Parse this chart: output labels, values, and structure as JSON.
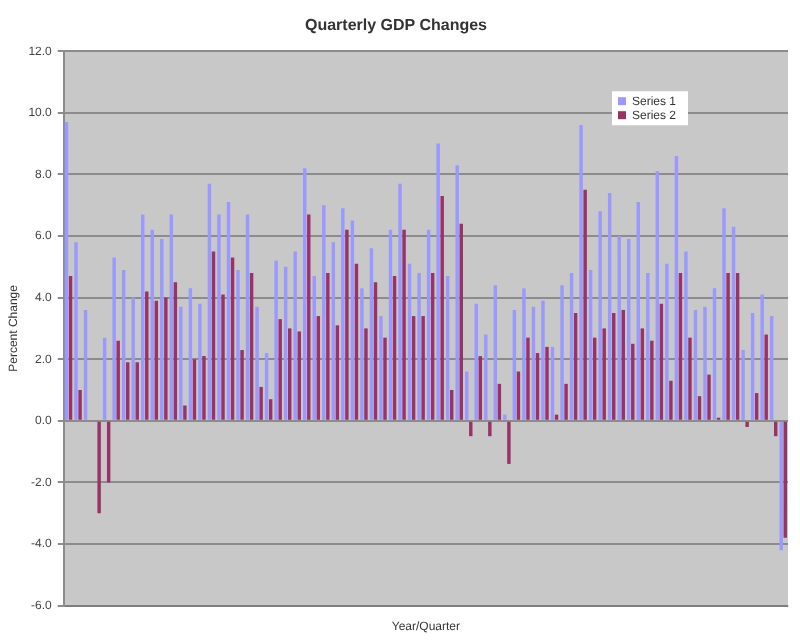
{
  "chart_data": {
    "type": "bar",
    "title": "Quarterly GDP Changes",
    "xlabel": "Year/Quarter",
    "ylabel": "Percent Change",
    "categories": [
      null,
      null,
      null,
      null,
      null,
      null,
      null,
      null,
      null,
      null,
      null,
      null,
      null,
      null,
      null,
      null,
      null,
      null,
      null,
      null,
      null,
      null,
      null,
      null,
      null,
      null,
      null,
      null,
      null,
      null,
      null,
      null,
      null,
      null,
      null,
      null,
      null,
      null,
      null,
      null,
      null,
      null,
      null,
      null,
      null,
      null,
      null,
      null,
      null,
      null,
      null,
      null,
      null,
      null,
      null,
      null,
      null,
      null,
      null,
      null,
      null,
      null,
      null,
      null,
      null,
      null,
      null,
      null,
      null,
      null,
      null,
      null,
      null,
      null,
      null,
      null
    ],
    "series": [
      {
        "name": "Series 1",
        "color": "#9999ff",
        "values": [
          9.7,
          5.8,
          3.6,
          0,
          2.7,
          5.3,
          4.9,
          4.0,
          6.7,
          6.2,
          5.9,
          6.7,
          3.7,
          4.3,
          3.8,
          7.7,
          6.7,
          7.1,
          4.9,
          6.7,
          3.7,
          2.2,
          5.2,
          5.0,
          5.5,
          8.2,
          4.7,
          7.0,
          5.8,
          6.9,
          6.5,
          4.3,
          5.6,
          3.4,
          6.2,
          7.7,
          5.1,
          4.8,
          6.2,
          9.0,
          4.7,
          8.3,
          1.6,
          3.8,
          2.8,
          4.4,
          0.2,
          3.6,
          4.3,
          3.7,
          3.9,
          2.4,
          4.4,
          4.8,
          9.6,
          4.9,
          6.8,
          7.4,
          6.0,
          5.9,
          7.1,
          4.8,
          8.1,
          5.1,
          8.6,
          5.5,
          3.6,
          3.7,
          4.3,
          6.9,
          6.3,
          2.3,
          3.5,
          4.1,
          3.4,
          -4.2
        ]
      },
      {
        "name": "Series 2",
        "color": "#993366",
        "values": [
          4.7,
          1.0,
          0,
          -3.0,
          -2.0,
          2.6,
          1.9,
          1.9,
          4.2,
          3.9,
          4.0,
          4.5,
          0.5,
          2.0,
          2.1,
          5.5,
          4.1,
          5.3,
          2.3,
          4.8,
          1.1,
          0.7,
          3.3,
          3.0,
          2.9,
          6.7,
          3.4,
          4.8,
          3.1,
          6.2,
          5.1,
          3.0,
          4.5,
          2.7,
          4.7,
          6.2,
          3.4,
          3.4,
          4.8,
          7.3,
          1.0,
          6.4,
          -0.5,
          2.1,
          -0.5,
          1.2,
          -1.4,
          1.6,
          2.7,
          2.2,
          2.4,
          0.2,
          1.2,
          3.5,
          7.5,
          2.7,
          3.0,
          3.5,
          3.6,
          2.5,
          3.0,
          2.6,
          3.8,
          1.3,
          4.8,
          2.7,
          0.8,
          1.5,
          0.1,
          4.8,
          4.8,
          -0.2,
          0.9,
          2.8,
          -0.5,
          -3.8
        ]
      }
    ],
    "ylim": [
      -6,
      12
    ],
    "yticks": [
      {
        "value": -6,
        "label": "-6.0"
      },
      {
        "value": -4,
        "label": "-4.0"
      },
      {
        "value": -2,
        "label": "-2.0"
      },
      {
        "value": 0,
        "label": "0.0"
      },
      {
        "value": 2,
        "label": "2.0"
      },
      {
        "value": 4,
        "label": "4.0"
      },
      {
        "value": 6,
        "label": "6.0"
      },
      {
        "value": 8,
        "label": "8.0"
      },
      {
        "value": 10,
        "label": "10.0"
      },
      {
        "value": 12,
        "label": "12.0"
      }
    ],
    "grid": "y",
    "legend": "top right"
  }
}
